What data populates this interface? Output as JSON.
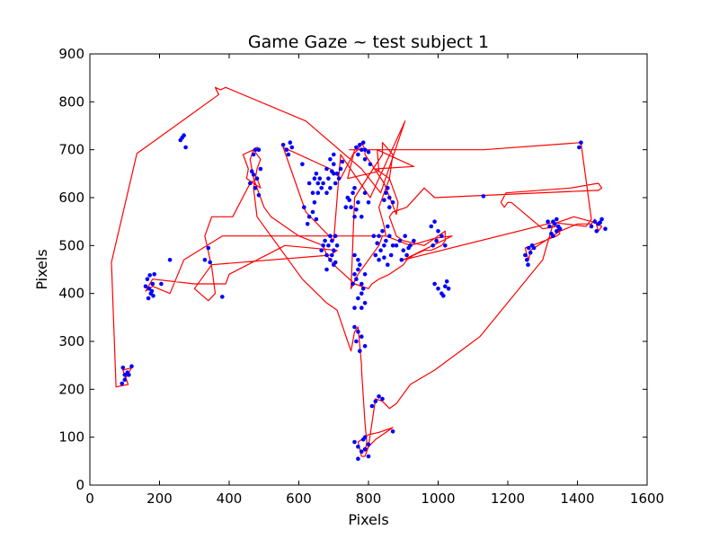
{
  "chart_data": {
    "type": "scatter",
    "title": "Game Gaze ~ test subject 1",
    "xlabel": "Pixels",
    "ylabel": "Pixels",
    "xlim": [
      0,
      1600
    ],
    "ylim": [
      0,
      900
    ],
    "xticks": [
      0,
      200,
      400,
      600,
      800,
      1000,
      1200,
      1400,
      1600
    ],
    "yticks": [
      0,
      100,
      200,
      300,
      400,
      500,
      600,
      700,
      800,
      900
    ],
    "grid": false,
    "legend": "none",
    "line_color": "#ff0000",
    "point_color": "#0000ff",
    "path": [
      [
        100,
        220
      ],
      [
        120,
        245
      ],
      [
        95,
        240
      ],
      [
        110,
        210
      ],
      [
        75,
        205
      ],
      [
        62,
        465
      ],
      [
        135,
        692
      ],
      [
        370,
        815
      ],
      [
        360,
        830
      ],
      [
        375,
        825
      ],
      [
        390,
        830
      ],
      [
        620,
        760
      ],
      [
        780,
        660
      ],
      [
        835,
        610
      ],
      [
        905,
        760
      ],
      [
        805,
        600
      ],
      [
        720,
        690
      ],
      [
        700,
        510
      ],
      [
        620,
        570
      ],
      [
        555,
        705
      ],
      [
        570,
        700
      ],
      [
        690,
        660
      ],
      [
        720,
        640
      ],
      [
        755,
        690
      ],
      [
        770,
        700
      ],
      [
        780,
        715
      ],
      [
        790,
        700
      ],
      [
        790,
        690
      ],
      [
        845,
        630
      ],
      [
        880,
        565
      ],
      [
        885,
        590
      ],
      [
        860,
        640
      ],
      [
        820,
        660
      ],
      [
        930,
        665
      ],
      [
        825,
        700
      ],
      [
        830,
        655
      ],
      [
        740,
        640
      ],
      [
        760,
        700
      ],
      [
        745,
        700
      ],
      [
        1130,
        700
      ],
      [
        1410,
        715
      ],
      [
        1440,
        555
      ],
      [
        1425,
        540
      ],
      [
        1330,
        548
      ],
      [
        900,
        470
      ],
      [
        1040,
        520
      ],
      [
        990,
        515
      ],
      [
        920,
        500
      ],
      [
        850,
        520
      ],
      [
        840,
        520
      ],
      [
        830,
        500
      ],
      [
        800,
        470
      ],
      [
        770,
        440
      ],
      [
        750,
        410
      ],
      [
        760,
        600
      ],
      [
        840,
        690
      ],
      [
        840,
        715
      ],
      [
        870,
        690
      ],
      [
        860,
        640
      ],
      [
        830,
        580
      ],
      [
        845,
        540
      ],
      [
        850,
        520
      ],
      [
        380,
        520
      ],
      [
        270,
        470
      ],
      [
        230,
        400
      ],
      [
        180,
        415
      ],
      [
        160,
        405
      ],
      [
        180,
        430
      ],
      [
        300,
        420
      ],
      [
        390,
        420
      ],
      [
        400,
        440
      ],
      [
        560,
        500
      ],
      [
        710,
        490
      ],
      [
        690,
        480
      ],
      [
        350,
        460
      ],
      [
        320,
        430
      ],
      [
        300,
        410
      ],
      [
        340,
        385
      ],
      [
        360,
        400
      ],
      [
        350,
        455
      ],
      [
        330,
        520
      ],
      [
        350,
        560
      ],
      [
        410,
        560
      ],
      [
        460,
        630
      ],
      [
        480,
        640
      ],
      [
        490,
        620
      ],
      [
        450,
        640
      ],
      [
        455,
        660
      ],
      [
        440,
        690
      ],
      [
        470,
        700
      ],
      [
        490,
        680
      ],
      [
        480,
        660
      ],
      [
        470,
        620
      ],
      [
        480,
        560
      ],
      [
        610,
        430
      ],
      [
        680,
        380
      ],
      [
        710,
        365
      ],
      [
        740,
        300
      ],
      [
        750,
        280
      ],
      [
        760,
        320
      ],
      [
        770,
        330
      ],
      [
        780,
        250
      ],
      [
        780,
        240
      ],
      [
        790,
        130
      ],
      [
        795,
        90
      ],
      [
        790,
        70
      ],
      [
        800,
        80
      ],
      [
        790,
        60
      ],
      [
        780,
        60
      ],
      [
        770,
        90
      ],
      [
        790,
        100
      ],
      [
        800,
        105
      ],
      [
        830,
        110
      ],
      [
        870,
        120
      ],
      [
        820,
        95
      ],
      [
        800,
        80
      ],
      [
        820,
        180
      ],
      [
        840,
        175
      ],
      [
        860,
        160
      ],
      [
        880,
        170
      ],
      [
        920,
        210
      ],
      [
        990,
        240
      ],
      [
        1120,
        310
      ],
      [
        1300,
        470
      ],
      [
        1330,
        545
      ],
      [
        1390,
        560
      ],
      [
        1450,
        548
      ],
      [
        1470,
        540
      ],
      [
        1460,
        530
      ],
      [
        1450,
        555
      ],
      [
        1440,
        545
      ],
      [
        1400,
        545
      ],
      [
        1350,
        530
      ],
      [
        1265,
        490
      ],
      [
        1260,
        470
      ],
      [
        1255,
        480
      ],
      [
        1250,
        495
      ],
      [
        1270,
        500
      ],
      [
        1340,
        520
      ],
      [
        1350,
        525
      ],
      [
        1340,
        540
      ],
      [
        1300,
        535
      ],
      [
        1210,
        590
      ],
      [
        1200,
        590
      ],
      [
        1190,
        580
      ],
      [
        1180,
        590
      ],
      [
        1195,
        610
      ],
      [
        1380,
        620
      ],
      [
        1460,
        630
      ],
      [
        1470,
        620
      ],
      [
        1460,
        615
      ],
      [
        1450,
        615
      ],
      [
        990,
        600
      ],
      [
        960,
        620
      ],
      [
        910,
        580
      ],
      [
        870,
        570
      ],
      [
        860,
        560
      ],
      [
        880,
        520
      ],
      [
        900,
        510
      ],
      [
        960,
        500
      ],
      [
        1000,
        520
      ],
      [
        1020,
        530
      ],
      [
        1020,
        510
      ],
      [
        1010,
        500
      ],
      [
        980,
        490
      ],
      [
        960,
        490
      ],
      [
        930,
        480
      ],
      [
        910,
        470
      ],
      [
        900,
        460
      ],
      [
        880,
        450
      ],
      [
        860,
        440
      ],
      [
        830,
        430
      ],
      [
        810,
        420
      ],
      [
        800,
        410
      ],
      [
        760,
        420
      ],
      [
        700,
        460
      ],
      [
        680,
        480
      ],
      [
        670,
        500
      ],
      [
        600,
        520
      ],
      [
        560,
        540
      ],
      [
        520,
        560
      ],
      [
        500,
        580
      ],
      [
        490,
        600
      ],
      [
        480,
        620
      ],
      [
        470,
        640
      ],
      [
        465,
        660
      ],
      [
        460,
        680
      ],
      [
        470,
        700
      ],
      [
        480,
        705
      ],
      [
        490,
        700
      ]
    ],
    "points": [
      [
        100,
        220
      ],
      [
        108,
        235
      ],
      [
        95,
        245
      ],
      [
        112,
        230
      ],
      [
        120,
        248
      ],
      [
        100,
        230
      ],
      [
        92,
        212
      ],
      [
        170,
        410
      ],
      [
        165,
        430
      ],
      [
        180,
        420
      ],
      [
        175,
        400
      ],
      [
        160,
        415
      ],
      [
        172,
        438
      ],
      [
        185,
        440
      ],
      [
        168,
        390
      ],
      [
        178,
        405
      ],
      [
        182,
        395
      ],
      [
        205,
        420
      ],
      [
        230,
        470
      ],
      [
        260,
        720
      ],
      [
        270,
        730
      ],
      [
        275,
        705
      ],
      [
        265,
        725
      ],
      [
        330,
        470
      ],
      [
        340,
        495
      ],
      [
        345,
        465
      ],
      [
        380,
        393
      ],
      [
        460,
        630
      ],
      [
        470,
        648
      ],
      [
        480,
        640
      ],
      [
        475,
        620
      ],
      [
        465,
        655
      ],
      [
        485,
        605
      ],
      [
        470,
        690
      ],
      [
        485,
        700
      ],
      [
        475,
        700
      ],
      [
        490,
        660
      ],
      [
        555,
        710
      ],
      [
        565,
        700
      ],
      [
        575,
        715
      ],
      [
        570,
        690
      ],
      [
        580,
        705
      ],
      [
        610,
        670
      ],
      [
        615,
        580
      ],
      [
        630,
        560
      ],
      [
        640,
        570
      ],
      [
        625,
        545
      ],
      [
        650,
        555
      ],
      [
        645,
        590
      ],
      [
        640,
        610
      ],
      [
        655,
        630
      ],
      [
        660,
        640
      ],
      [
        650,
        650
      ],
      [
        670,
        630
      ],
      [
        665,
        620
      ],
      [
        645,
        640
      ],
      [
        630,
        630
      ],
      [
        655,
        610
      ],
      [
        680,
        660
      ],
      [
        690,
        680
      ],
      [
        700,
        670
      ],
      [
        710,
        650
      ],
      [
        695,
        655
      ],
      [
        705,
        630
      ],
      [
        685,
        640
      ],
      [
        720,
        660
      ],
      [
        725,
        675
      ],
      [
        700,
        690
      ],
      [
        715,
        640
      ],
      [
        690,
        620
      ],
      [
        700,
        650
      ],
      [
        680,
        610
      ],
      [
        670,
        500
      ],
      [
        680,
        480
      ],
      [
        690,
        470
      ],
      [
        700,
        490
      ],
      [
        675,
        510
      ],
      [
        685,
        500
      ],
      [
        695,
        480
      ],
      [
        705,
        465
      ],
      [
        665,
        490
      ],
      [
        690,
        520
      ],
      [
        710,
        500
      ],
      [
        700,
        460
      ],
      [
        680,
        450
      ],
      [
        695,
        510
      ],
      [
        705,
        520
      ],
      [
        740,
        600
      ],
      [
        750,
        580
      ],
      [
        760,
        560
      ],
      [
        765,
        575
      ],
      [
        770,
        590
      ],
      [
        780,
        560
      ],
      [
        755,
        610
      ],
      [
        745,
        595
      ],
      [
        735,
        580
      ],
      [
        760,
        620
      ],
      [
        790,
        610
      ],
      [
        800,
        590
      ],
      [
        760,
        440
      ],
      [
        770,
        450
      ],
      [
        780,
        420
      ],
      [
        765,
        430
      ],
      [
        775,
        460
      ],
      [
        755,
        420
      ],
      [
        785,
        410
      ],
      [
        790,
        440
      ],
      [
        770,
        470
      ],
      [
        760,
        480
      ],
      [
        780,
        400
      ],
      [
        770,
        690
      ],
      [
        775,
        710
      ],
      [
        780,
        700
      ],
      [
        785,
        715
      ],
      [
        790,
        700
      ],
      [
        765,
        705
      ],
      [
        790,
        680
      ],
      [
        800,
        695
      ],
      [
        805,
        670
      ],
      [
        830,
        520
      ],
      [
        840,
        530
      ],
      [
        850,
        510
      ],
      [
        845,
        500
      ],
      [
        855,
        540
      ],
      [
        860,
        520
      ],
      [
        835,
        490
      ],
      [
        825,
        505
      ],
      [
        870,
        500
      ],
      [
        865,
        480
      ],
      [
        820,
        480
      ],
      [
        815,
        520
      ],
      [
        830,
        470
      ],
      [
        845,
        475
      ],
      [
        855,
        460
      ],
      [
        880,
        500
      ],
      [
        890,
        510
      ],
      [
        900,
        490
      ],
      [
        910,
        480
      ],
      [
        920,
        500
      ],
      [
        905,
        520
      ],
      [
        895,
        470
      ],
      [
        915,
        495
      ],
      [
        930,
        510
      ],
      [
        850,
        610
      ],
      [
        860,
        600
      ],
      [
        870,
        590
      ],
      [
        860,
        580
      ],
      [
        845,
        595
      ],
      [
        855,
        620
      ],
      [
        980,
        540
      ],
      [
        990,
        550
      ],
      [
        1000,
        530
      ],
      [
        1010,
        520
      ],
      [
        995,
        510
      ],
      [
        1020,
        500
      ],
      [
        985,
        500
      ],
      [
        990,
        420
      ],
      [
        1000,
        410
      ],
      [
        1010,
        400
      ],
      [
        1020,
        415
      ],
      [
        1030,
        410
      ],
      [
        1015,
        395
      ],
      [
        1025,
        425
      ],
      [
        760,
        330
      ],
      [
        770,
        320
      ],
      [
        780,
        310
      ],
      [
        790,
        290
      ],
      [
        775,
        280
      ],
      [
        765,
        300
      ],
      [
        780,
        370
      ],
      [
        790,
        380
      ],
      [
        760,
        370
      ],
      [
        770,
        390
      ],
      [
        760,
        90
      ],
      [
        770,
        80
      ],
      [
        780,
        70
      ],
      [
        790,
        100
      ],
      [
        800,
        60
      ],
      [
        770,
        55
      ],
      [
        790,
        75
      ],
      [
        785,
        95
      ],
      [
        800,
        85
      ],
      [
        870,
        112
      ],
      [
        810,
        165
      ],
      [
        820,
        175
      ],
      [
        840,
        180
      ],
      [
        830,
        185
      ],
      [
        1130,
        603
      ],
      [
        1250,
        480
      ],
      [
        1260,
        495
      ],
      [
        1255,
        470
      ],
      [
        1265,
        485
      ],
      [
        1270,
        500
      ],
      [
        1258,
        460
      ],
      [
        1275,
        495
      ],
      [
        1320,
        540
      ],
      [
        1330,
        550
      ],
      [
        1340,
        530
      ],
      [
        1335,
        545
      ],
      [
        1325,
        525
      ],
      [
        1345,
        540
      ],
      [
        1350,
        535
      ],
      [
        1315,
        550
      ],
      [
        1330,
        520
      ],
      [
        1340,
        555
      ],
      [
        1410,
        715
      ],
      [
        1405,
        705
      ],
      [
        1440,
        540
      ],
      [
        1450,
        550
      ],
      [
        1460,
        545
      ],
      [
        1470,
        555
      ],
      [
        1480,
        535
      ],
      [
        1455,
        530
      ],
      [
        1465,
        548
      ]
    ]
  }
}
